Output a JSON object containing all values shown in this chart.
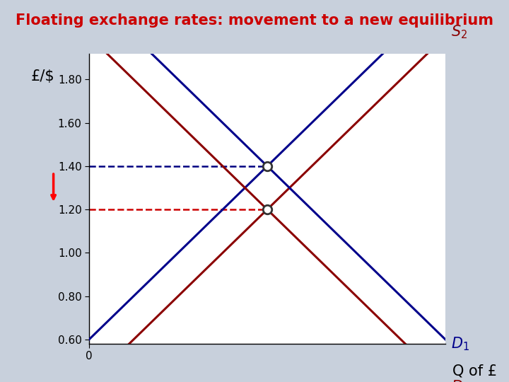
{
  "title": "Floating exchange rates: movement to a new equilibrium",
  "title_color": "#cc0000",
  "title_fontsize": 15,
  "background_color": "#c8d0dc",
  "plot_bg_color": "#ffffff",
  "xlabel": "Q of £",
  "ylabel": "£/$",
  "ylim": [
    0.58,
    1.92
  ],
  "xlim": [
    0,
    10
  ],
  "yticks": [
    0.6,
    0.8,
    1.0,
    1.2,
    1.4,
    1.6,
    1.8
  ],
  "s1_color": "#00008b",
  "s2_color": "#8b0000",
  "d1_color": "#00008b",
  "d2_color": "#8b0000",
  "dashed_color_dark": "#000080",
  "dashed_color_red": "#cc0000",
  "eq1_x": 5.0,
  "eq1_y": 1.4,
  "eq2_x": 5.0,
  "eq2_y": 1.2,
  "s1_slope": 0.16,
  "s1_intercept": 0.6,
  "s2_slope": 0.16,
  "s2_intercept": 0.4,
  "d1_slope": -0.16,
  "d1_intercept": 2.2,
  "d2_slope": -0.16,
  "d2_intercept": 2.0,
  "linewidth": 2.2,
  "label_fontsize": 15,
  "tick_fontsize": 11
}
